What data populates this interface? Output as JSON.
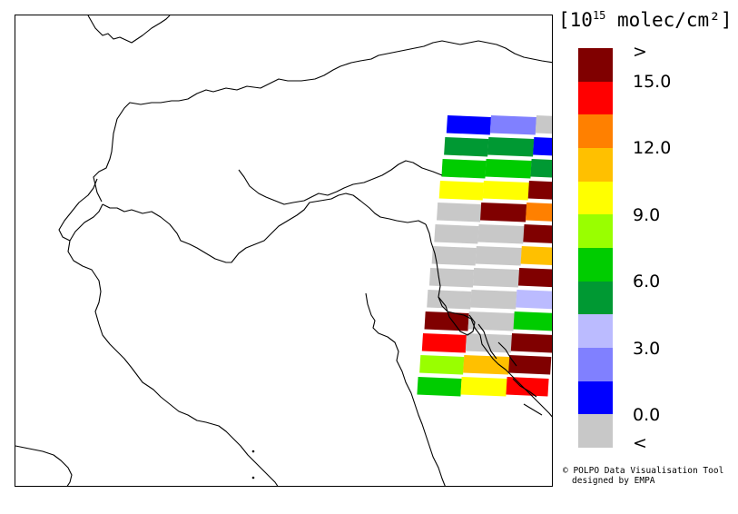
{
  "legend": {
    "unit_prefix": "[10",
    "unit_exponent": "15",
    "unit_suffix": " molec/cm²]",
    "colors": [
      "#800000",
      "#ff0000",
      "#ff8000",
      "#ffc000",
      "#ffff00",
      "#99ff00",
      "#00cc00",
      "#009933",
      "#bbbbff",
      "#8080ff",
      "#0000ff",
      "#c8c8c8"
    ],
    "ticks": [
      ">",
      "15.0",
      "12.0",
      "9.0",
      "6.0",
      "3.0",
      "0.0",
      "<"
    ]
  },
  "credit": {
    "line1": "© POLPO Data Visualisation Tool",
    "line2": "designed by EMPA"
  },
  "swath_rows": [
    [
      "#0000ff",
      "#8080ff",
      "#c8c8c8"
    ],
    [
      "#009933",
      "#009933",
      "#0000ff"
    ],
    [
      "#00cc00",
      "#00cc00",
      "#009933"
    ],
    [
      "#ffff00",
      "#ffff00",
      "#800000"
    ],
    [
      "#c8c8c8",
      "#800000",
      "#ff8000"
    ],
    [
      "#c8c8c8",
      "#c8c8c8",
      "#800000"
    ],
    [
      "#c8c8c8",
      "#c8c8c8",
      "#ffc000"
    ],
    [
      "#c8c8c8",
      "#c8c8c8",
      "#800000"
    ],
    [
      "#c8c8c8",
      "#c8c8c8",
      "#bbbbff"
    ],
    [
      "#800000",
      "#c8c8c8",
      "#00cc00"
    ],
    [
      "#ff0000",
      "#c8c8c8",
      "#800000"
    ],
    [
      "#99ff00",
      "#ffc000",
      "#800000"
    ],
    [
      "#00cc00",
      "#ffff00",
      "#ff0000"
    ]
  ]
}
